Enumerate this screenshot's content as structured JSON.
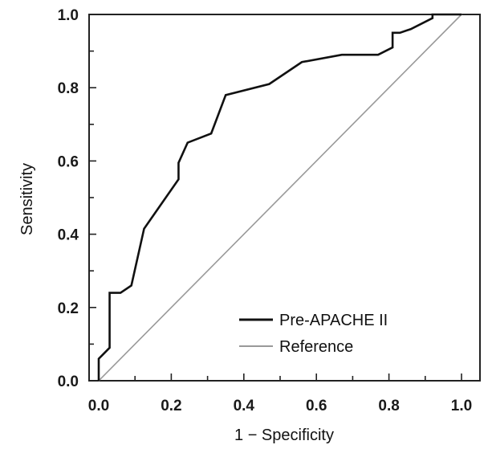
{
  "chart_data": {
    "type": "line",
    "xlabel": "1 − Specificity",
    "ylabel": "Sensitivity",
    "xlim": [
      0,
      1
    ],
    "ylim": [
      0,
      1
    ],
    "x_ticks": [
      "0.0",
      "0.2",
      "0.4",
      "0.6",
      "0.8",
      "1.0"
    ],
    "y_ticks": [
      "0.0",
      "0.2",
      "0.4",
      "0.6",
      "0.8",
      "1.0"
    ],
    "grid": false,
    "legend_position": "bottom-right",
    "series": [
      {
        "name": "Pre-APACHE II",
        "color": "#111111",
        "x": [
          0.0,
          0.0,
          0.03,
          0.03,
          0.06,
          0.09,
          0.125,
          0.22,
          0.22,
          0.245,
          0.31,
          0.35,
          0.47,
          0.56,
          0.67,
          0.77,
          0.81,
          0.81,
          0.83,
          0.86,
          0.92,
          0.92,
          1.0
        ],
        "y": [
          0.0,
          0.06,
          0.09,
          0.24,
          0.24,
          0.26,
          0.415,
          0.55,
          0.595,
          0.65,
          0.675,
          0.78,
          0.81,
          0.87,
          0.89,
          0.89,
          0.91,
          0.95,
          0.95,
          0.96,
          0.99,
          1.0,
          1.0
        ]
      },
      {
        "name": "Reference",
        "color": "#999999",
        "x": [
          0,
          1
        ],
        "y": [
          0,
          1
        ]
      }
    ]
  }
}
